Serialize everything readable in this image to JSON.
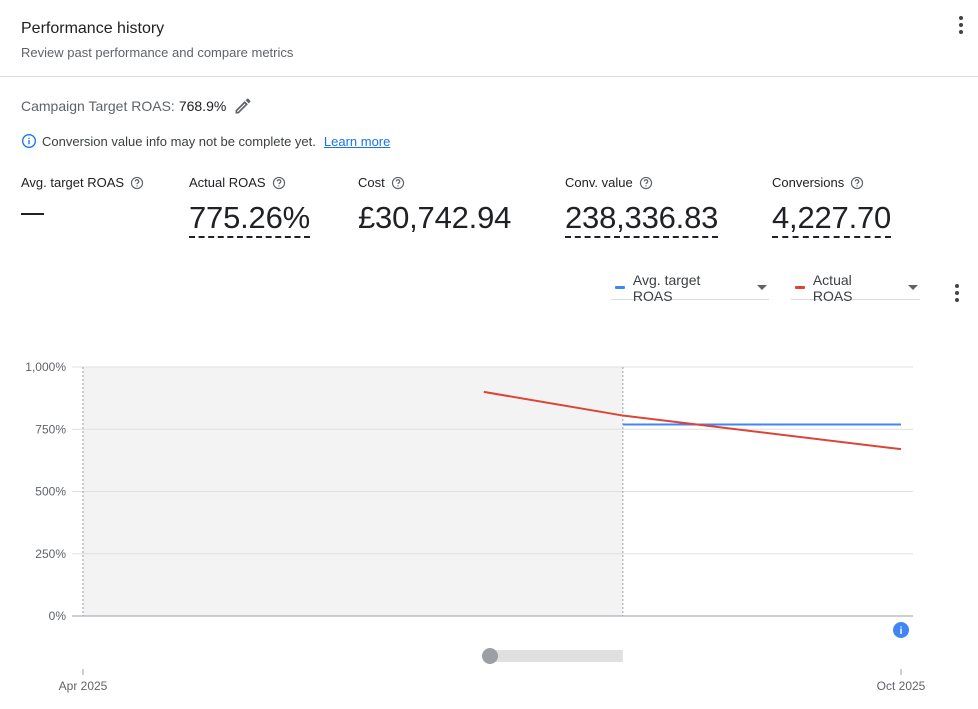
{
  "header": {
    "title": "Performance history",
    "subtitle": "Review past performance and compare metrics"
  },
  "campaign": {
    "label": "Campaign Target ROAS:",
    "value": "768.9%"
  },
  "notice": {
    "text": "Conversion value info may not be complete yet.",
    "link": "Learn more"
  },
  "metrics": [
    {
      "label": "Avg. target ROAS",
      "value": "—"
    },
    {
      "label": "Actual ROAS",
      "value": "775.26%"
    },
    {
      "label": "Cost",
      "value": "£30,742.94"
    },
    {
      "label": "Conv. value",
      "value": "238,336.83"
    },
    {
      "label": "Conversions",
      "value": "4,227.70"
    }
  ],
  "legend": [
    {
      "label": "Avg. target ROAS",
      "color": "#4285f4"
    },
    {
      "label": "Actual ROAS",
      "color": "#db4437"
    }
  ],
  "icons": [
    "more-vert-icon",
    "edit-pencil-icon",
    "info-icon",
    "help-circle-icon",
    "dropdown-caret-icon",
    "info-marker-icon"
  ],
  "chart_data": {
    "type": "line",
    "x_ticks": [
      "Apr 2025",
      "Oct 2025"
    ],
    "y_ticks": [
      "1,000%",
      "750%",
      "500%",
      "250%",
      "0%"
    ],
    "ylim": [
      0,
      1000
    ],
    "series": [
      {
        "name": "Avg. target ROAS",
        "color": "#4285f4",
        "points": [
          [
            0.66,
            768.9
          ],
          [
            1.0,
            768.9
          ]
        ]
      },
      {
        "name": "Actual ROAS",
        "color": "#db4437",
        "points": [
          [
            0.49,
            900
          ],
          [
            0.66,
            805
          ],
          [
            1.0,
            670
          ]
        ]
      }
    ],
    "shaded_range": [
      0.0,
      0.66
    ],
    "slider_position": 0.0,
    "grid": true
  }
}
